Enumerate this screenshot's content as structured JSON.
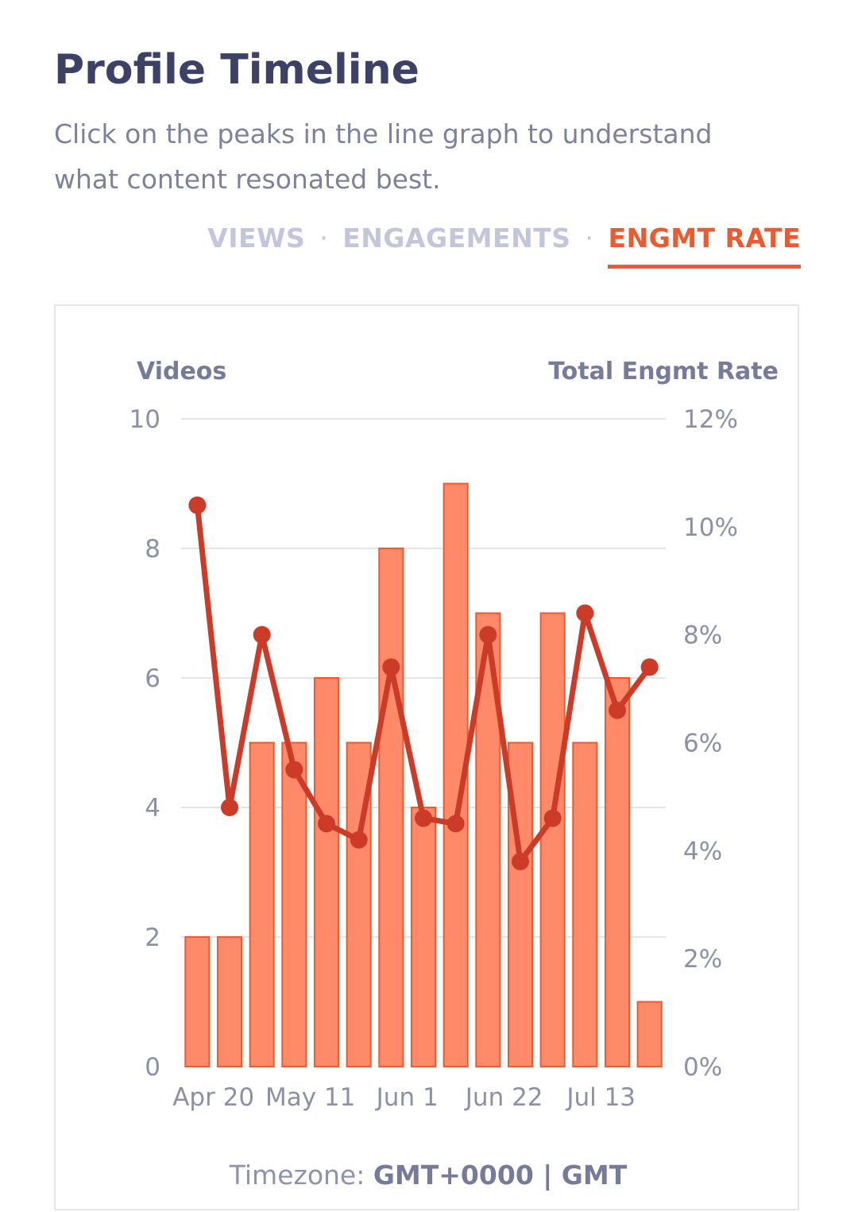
{
  "header": {
    "title": "Profile Timeline",
    "subtitle": "Click on the peaks in the line graph to understand what content resonated best."
  },
  "tabs": [
    {
      "label": "VIEWS",
      "active": false
    },
    {
      "label": "ENGAGEMENTS",
      "active": false
    },
    {
      "label": "ENGMT RATE",
      "active": true
    }
  ],
  "tab_separator": "·",
  "colors": {
    "accent": "#ee5a2f",
    "bar_fill": "#ff8a6a",
    "bar_stroke": "#ee5a2f",
    "line": "#cc3a28",
    "title": "#3d4166",
    "muted_text": "#7e819b",
    "inactive_tab": "#c3c6da",
    "grid": "#e3e4ee"
  },
  "timezone": {
    "label": "Timezone:",
    "value": "GMT+0000 | GMT"
  },
  "chart_data": {
    "type": "bar",
    "left_axis_title": "Videos",
    "right_axis_title": "Total Engmt Rate",
    "left_ticks": [
      "0",
      "2",
      "4",
      "6",
      "8",
      "10"
    ],
    "right_ticks": [
      "0%",
      "2%",
      "4%",
      "6%",
      "8%",
      "10%",
      "12%"
    ],
    "x_tick_labels": [
      "Apr 20",
      "May 11",
      "Jun 1",
      "Jun 22",
      "Jul 13"
    ],
    "x_tick_positions": [
      0.5,
      3.5,
      6.5,
      9.5,
      12.5
    ],
    "ylim_left": [
      0,
      10
    ],
    "ylim_right": [
      0,
      12
    ],
    "grid": true,
    "series": [
      {
        "name": "Videos",
        "type": "bar",
        "axis": "left",
        "values": [
          2,
          2,
          5,
          5,
          6,
          5,
          8,
          4,
          9,
          7,
          5,
          7,
          5,
          6,
          1
        ]
      },
      {
        "name": "Total Engmt Rate",
        "type": "line",
        "axis": "right",
        "values": [
          10.4,
          4.8,
          8.0,
          5.5,
          4.5,
          4.2,
          7.4,
          4.6,
          4.5,
          8.0,
          3.8,
          4.6,
          8.4,
          6.6,
          7.4
        ]
      }
    ]
  }
}
